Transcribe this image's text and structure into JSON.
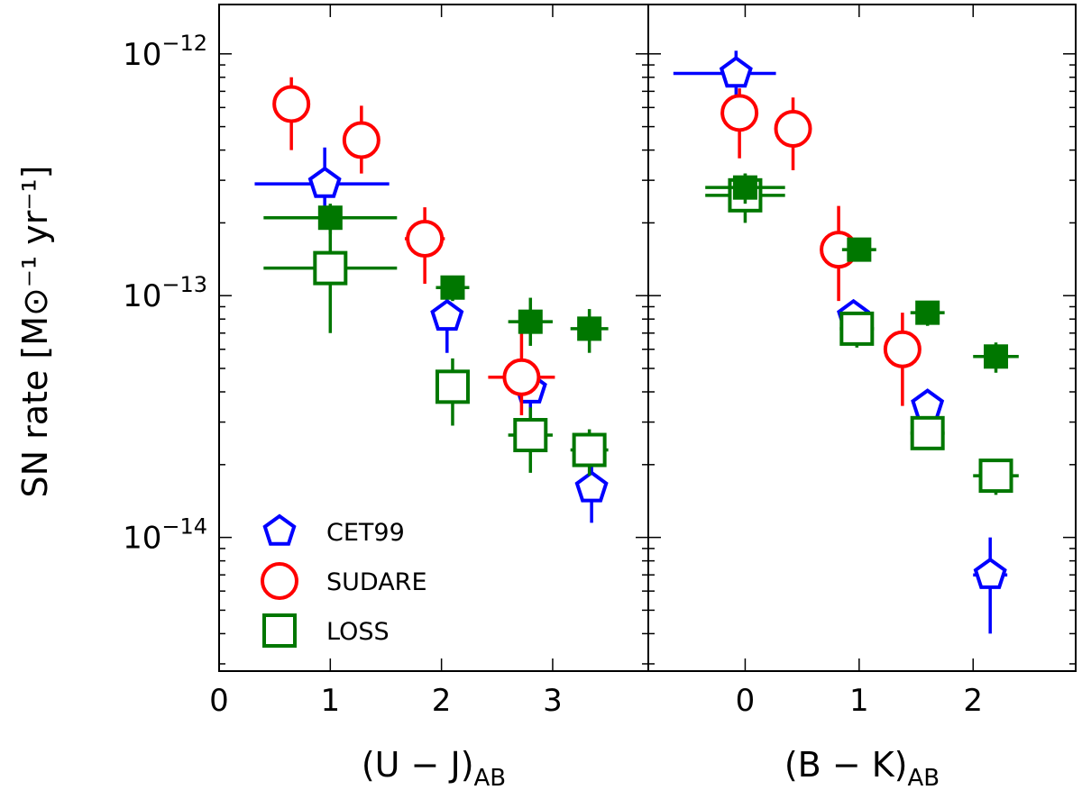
{
  "chart_data": {
    "type": "scatter",
    "ylabel": "SN rate [M⊙⁻¹ yr⁻¹]",
    "yscale": "log",
    "ylim": [
      2.8e-15,
      1.6e-12
    ],
    "y_ticks": [
      {
        "value": 1e-12,
        "base": "10",
        "exp": "−12"
      },
      {
        "value": 1e-13,
        "base": "10",
        "exp": "−13"
      },
      {
        "value": 1e-14,
        "base": "10",
        "exp": "−14"
      }
    ],
    "colors": {
      "CET99": "#0000ff",
      "SUDARE": "#ff0000",
      "LOSS": "#007700"
    },
    "legend": {
      "position": "lower-left",
      "entries": [
        {
          "name": "CET99",
          "marker": "pentagon-open",
          "color": "#0000ff"
        },
        {
          "name": "SUDARE",
          "marker": "circle-open",
          "color": "#ff0000"
        },
        {
          "name": "LOSS",
          "marker": "square-open",
          "color": "#007700"
        }
      ]
    },
    "panels": [
      {
        "id": "left",
        "xlabel_main": "(U − J)",
        "xlabel_sub": "AB",
        "xlim": [
          0,
          3.86
        ],
        "x_ticks": [
          "0",
          "1",
          "2",
          "3"
        ],
        "x_tick_values": [
          0,
          1,
          2,
          3
        ],
        "series": [
          {
            "name": "CET99",
            "marker": "pentagon-open",
            "color": "#0000ff",
            "points": [
              {
                "x": 0.95,
                "y": 2.9e-13,
                "xerr": [
                  0.63,
                  0.58
                ],
                "yerr": [
                  1e-13,
                  1.2e-13
                ]
              },
              {
                "x": 2.05,
                "y": 8.2e-14,
                "xerr": [
                  0.1,
                  0.1
                ],
                "yerr": [
                  2.4e-14,
                  2e-14
                ]
              },
              {
                "x": 2.8,
                "y": 4.1e-14,
                "xerr": [
                  0.1,
                  0.1
                ],
                "yerr": [
                  1e-14,
                  1e-14
                ]
              },
              {
                "x": 3.35,
                "y": 1.6e-14,
                "xerr": [
                  0.1,
                  0.1
                ],
                "yerr": [
                  4.5e-15,
                  4e-15
                ]
              }
            ]
          },
          {
            "name": "SUDARE",
            "marker": "circle-open",
            "color": "#ff0000",
            "points": [
              {
                "x": 0.65,
                "y": 6.2e-13,
                "xerr": [
                  0.15,
                  0.15
                ],
                "yerr": [
                  2.2e-13,
                  1.8e-13
                ]
              },
              {
                "x": 1.28,
                "y": 4.4e-13,
                "xerr": [
                  0.08,
                  0.08
                ],
                "yerr": [
                  1.2e-13,
                  1.7e-13
                ]
              },
              {
                "x": 1.85,
                "y": 1.72e-13,
                "xerr": [
                  0.18,
                  0.18
                ],
                "yerr": [
                  6e-14,
                  6e-14
                ]
              },
              {
                "x": 2.72,
                "y": 4.6e-14,
                "xerr": [
                  0.3,
                  0.3
                ],
                "yerr": [
                  1.4e-14,
                  2.4e-14
                ]
              }
            ]
          },
          {
            "name": "LOSS",
            "marker": "square-open",
            "color": "#007700",
            "points": [
              {
                "x": 1.0,
                "y": 1.3e-13,
                "xerr": [
                  0.6,
                  0.6
                ],
                "yerr": [
                  6e-14,
                  6e-14
                ]
              },
              {
                "x": 2.1,
                "y": 4.2e-14,
                "xerr": [
                  0.15,
                  0.15
                ],
                "yerr": [
                  1.3e-14,
                  1.3e-14
                ]
              },
              {
                "x": 2.8,
                "y": 2.65e-14,
                "xerr": [
                  0.2,
                  0.2
                ],
                "yerr": [
                  8e-15,
                  8e-15
                ]
              },
              {
                "x": 3.33,
                "y": 2.3e-14,
                "xerr": [
                  0.17,
                  0.17
                ],
                "yerr": [
                  5e-15,
                  5e-15
                ]
              }
            ]
          },
          {
            "name": "LOSS (filled)",
            "marker": "square-filled",
            "color": "#007700",
            "points": [
              {
                "x": 1.0,
                "y": 2.1e-13,
                "xerr": [
                  0.6,
                  0.6
                ],
                "yerr": [
                  3e-14,
                  3e-14
                ]
              },
              {
                "x": 2.1,
                "y": 1.08e-13,
                "xerr": [
                  0.15,
                  0.15
                ],
                "yerr": [
                  1.3e-14,
                  1.3e-14
                ]
              },
              {
                "x": 2.8,
                "y": 7.8e-14,
                "xerr": [
                  0.2,
                  0.2
                ],
                "yerr": [
                  1.6e-14,
                  2e-14
                ]
              },
              {
                "x": 3.33,
                "y": 7.3e-14,
                "xerr": [
                  0.17,
                  0.17
                ],
                "yerr": [
                  1.5e-14,
                  1.5e-14
                ]
              }
            ]
          }
        ]
      },
      {
        "id": "right",
        "xlabel_main": "(B − K)",
        "xlabel_sub": "AB",
        "xlim": [
          -0.85,
          2.9
        ],
        "x_ticks": [
          "0",
          "1",
          "2"
        ],
        "x_tick_values": [
          0,
          1,
          2
        ],
        "series": [
          {
            "name": "CET99",
            "marker": "pentagon-open",
            "color": "#0000ff",
            "points": [
              {
                "x": -0.08,
                "y": 8.3e-13,
                "xerr": [
                  0.55,
                  0.35
                ],
                "yerr": [
                  2e-13,
                  2e-13
                ]
              },
              {
                "x": 0.95,
                "y": 8.2e-14,
                "xerr": [
                  0.1,
                  0.1
                ],
                "yerr": [
                  1e-14,
                  1e-14
                ]
              },
              {
                "x": 1.6,
                "y": 3.5e-14,
                "xerr": [
                  0.08,
                  0.08
                ],
                "yerr": [
                  5e-15,
                  5e-15
                ]
              },
              {
                "x": 2.15,
                "y": 7e-15,
                "xerr": [
                  0.15,
                  0.15
                ],
                "yerr": [
                  3e-15,
                  3e-15
                ]
              }
            ]
          },
          {
            "name": "SUDARE",
            "marker": "circle-open",
            "color": "#ff0000",
            "points": [
              {
                "x": -0.05,
                "y": 5.7e-13,
                "xerr": [
                  0.12,
                  0.12
                ],
                "yerr": [
                  2e-13,
                  1.5e-13
                ]
              },
              {
                "x": 0.42,
                "y": 4.9e-13,
                "xerr": [
                  0.08,
                  0.08
                ],
                "yerr": [
                  1.6e-13,
                  1.7e-13
                ]
              },
              {
                "x": 0.82,
                "y": 1.55e-13,
                "xerr": [
                  0.12,
                  0.12
                ],
                "yerr": [
                  6e-14,
                  8e-14
                ]
              },
              {
                "x": 1.38,
                "y": 6e-14,
                "xerr": [
                  0.12,
                  0.12
                ],
                "yerr": [
                  2.5e-14,
                  2.5e-14
                ]
              }
            ]
          },
          {
            "name": "LOSS",
            "marker": "square-open",
            "color": "#007700",
            "points": [
              {
                "x": 0.0,
                "y": 2.6e-13,
                "xerr": [
                  0.35,
                  0.35
                ],
                "yerr": [
                  6e-14,
                  6e-14
                ]
              },
              {
                "x": 0.98,
                "y": 7.3e-14,
                "xerr": [
                  0.15,
                  0.15
                ],
                "yerr": [
                  1.2e-14,
                  1.2e-14
                ]
              },
              {
                "x": 1.6,
                "y": 2.7e-14,
                "xerr": [
                  0.15,
                  0.15
                ],
                "yerr": [
                  4e-15,
                  4e-15
                ]
              },
              {
                "x": 2.2,
                "y": 1.8e-14,
                "xerr": [
                  0.2,
                  0.2
                ],
                "yerr": [
                  3e-15,
                  3e-15
                ]
              }
            ]
          },
          {
            "name": "LOSS (filled)",
            "marker": "square-filled",
            "color": "#007700",
            "points": [
              {
                "x": 0.0,
                "y": 2.8e-13,
                "xerr": [
                  0.35,
                  0.35
                ],
                "yerr": [
                  4e-14,
                  4e-14
                ]
              },
              {
                "x": 1.0,
                "y": 1.55e-13,
                "xerr": [
                  0.15,
                  0.15
                ],
                "yerr": [
                  1.5e-14,
                  1.5e-14
                ]
              },
              {
                "x": 1.6,
                "y": 8.5e-14,
                "xerr": [
                  0.15,
                  0.15
                ],
                "yerr": [
                  1e-14,
                  1e-14
                ]
              },
              {
                "x": 2.2,
                "y": 5.6e-14,
                "xerr": [
                  0.2,
                  0.2
                ],
                "yerr": [
                  8e-15,
                  8e-15
                ]
              }
            ]
          }
        ]
      }
    ]
  }
}
